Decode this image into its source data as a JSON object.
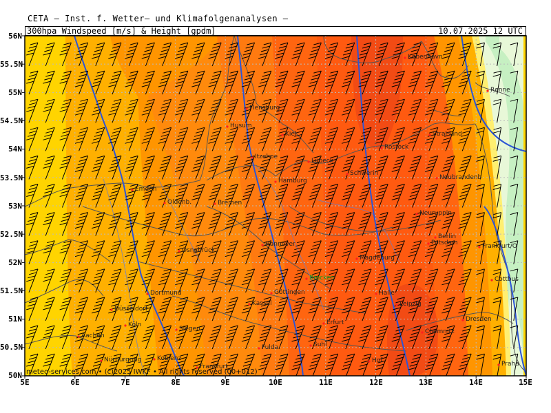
{
  "header": {
    "title": "CETA – Inst. f. Wetter– und Klimafolgenanalysen –",
    "parameter": "300hpa_Windspeed_[m/s]_&_Height_[gpdm]",
    "valid_time": "10.07.2025 12 UTC"
  },
  "footer": {
    "credit": "meteo-services.com • (c)2025 IWKF • All rights reserved (00+012)"
  },
  "axes": {
    "lat_labels": [
      "56N",
      "55.5N",
      "55N",
      "54.5N",
      "54N",
      "53.5N",
      "53N",
      "52.5N",
      "52N",
      "51.5N",
      "51N",
      "50.5N",
      "50N"
    ],
    "lon_labels": [
      "5E",
      "6E",
      "7E",
      "8E",
      "9E",
      "10E",
      "11E",
      "12E",
      "13E",
      "14E",
      "15E"
    ]
  },
  "cities": [
    {
      "name": "København",
      "key": "kobenhavn"
    },
    {
      "name": "Rønne",
      "key": "ronne"
    },
    {
      "name": "Flensburg",
      "key": "flensburg"
    },
    {
      "name": "Husum",
      "key": "husum"
    },
    {
      "name": "Kiel",
      "key": "kiel"
    },
    {
      "name": "Stralsund",
      "key": "stralsund"
    },
    {
      "name": "Rostock",
      "key": "rostock"
    },
    {
      "name": "Itzehoe",
      "key": "itzehoe"
    },
    {
      "name": "Lübeck",
      "key": "luebeck"
    },
    {
      "name": "Schwerin",
      "key": "schwerin"
    },
    {
      "name": "Hamburg",
      "key": "hamburg"
    },
    {
      "name": "Neubrandenb",
      "key": "neubrandenburg"
    },
    {
      "name": "Emden",
      "key": "emden"
    },
    {
      "name": "Oldenb.",
      "key": "oldenburg"
    },
    {
      "name": "Bremen",
      "key": "bremen"
    },
    {
      "name": "Neuruppin",
      "key": "neuruppin"
    },
    {
      "name": "Berlin",
      "key": "berlin"
    },
    {
      "name": "Potsdam",
      "key": "potsdam"
    },
    {
      "name": "Osnabrück",
      "key": "osnabrueck"
    },
    {
      "name": "Hannover",
      "key": "hannover"
    },
    {
      "name": "Frankfurt/O",
      "key": "frankfurt_oder"
    },
    {
      "name": "Magdeburg",
      "key": "magdeburg"
    },
    {
      "name": "Brocken",
      "key": "brocken"
    },
    {
      "name": "Cottbus",
      "key": "cottbus"
    },
    {
      "name": "Dortmund",
      "key": "dortmund"
    },
    {
      "name": "Göttingen",
      "key": "goettingen"
    },
    {
      "name": "Halle",
      "key": "halle"
    },
    {
      "name": "Kassel",
      "key": "kassel"
    },
    {
      "name": "Leipzig",
      "key": "leipzig"
    },
    {
      "name": "Düsseldorf",
      "key": "duesseldorf"
    },
    {
      "name": "Köln",
      "key": "koeln"
    },
    {
      "name": "Erfurt",
      "key": "erfurt"
    },
    {
      "name": "Dresden",
      "key": "dresden"
    },
    {
      "name": "Siegen",
      "key": "siegen"
    },
    {
      "name": "Aachen",
      "key": "aachen"
    },
    {
      "name": "Chemnitz",
      "key": "chemnitz"
    },
    {
      "name": "Fulda",
      "key": "fulda"
    },
    {
      "name": "Suhl",
      "key": "suhl"
    },
    {
      "name": "Nürburgring",
      "key": "nuerburgring"
    },
    {
      "name": "Koblenz",
      "key": "koblenz"
    },
    {
      "name": "Frankfurt",
      "key": "frankfurt"
    },
    {
      "name": "Hof",
      "key": "hof"
    },
    {
      "name": "Praha",
      "key": "praha"
    }
  ],
  "colors": {
    "yellow": "#ffd400",
    "light_orange": "#ffb000",
    "orange": "#ff9500",
    "dark_orange": "#ff7a10",
    "red_orange": "#ff5a10",
    "red": "#f24b14",
    "pale_yellow": "#ffef70",
    "pale_green": "#e8f8d8",
    "light_green": "#c6f0c2",
    "contour_blue": "#2d55d6",
    "border_gray": "#666666",
    "river_blue": "#6a7cc6"
  }
}
